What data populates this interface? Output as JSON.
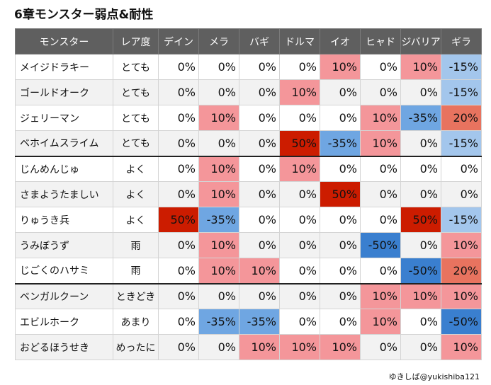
{
  "title": "6章モンスター弱点&耐性",
  "credit": "ゆきしば@yukishiba121",
  "columns": [
    "モンスター",
    "レア度",
    "デイン",
    "メラ",
    "バギ",
    "ドルマ",
    "イオ",
    "ヒャド",
    "ジバリア",
    "ギラ"
  ],
  "group_starts": [
    0,
    4,
    9
  ],
  "colors": {
    "50%": "#cc1c00",
    "20%": "#e8735f",
    "10%": "#f4969a",
    "-15%": "#a3c6ec",
    "-35%": "#6fa6e2",
    "-50%": "#3a7fcf",
    "0%": "#ffffff"
  },
  "rows": [
    {
      "name": "メイジドラキー",
      "rarity": "とても",
      "values": [
        "0%",
        "0%",
        "0%",
        "0%",
        "10%",
        "0%",
        "10%",
        "-15%"
      ]
    },
    {
      "name": "ゴールドオーク",
      "rarity": "とても",
      "values": [
        "0%",
        "0%",
        "0%",
        "10%",
        "0%",
        "0%",
        "0%",
        "-15%"
      ]
    },
    {
      "name": "ジェリーマン",
      "rarity": "とても",
      "values": [
        "0%",
        "10%",
        "0%",
        "0%",
        "0%",
        "10%",
        "-35%",
        "20%"
      ]
    },
    {
      "name": "ベホイムスライム",
      "rarity": "とても",
      "values": [
        "0%",
        "0%",
        "0%",
        "50%",
        "-35%",
        "10%",
        "0%",
        "-15%"
      ]
    },
    {
      "name": "じんめんじゅ",
      "rarity": "よく",
      "values": [
        "0%",
        "10%",
        "0%",
        "10%",
        "0%",
        "0%",
        "0%",
        "0%"
      ]
    },
    {
      "name": "さまようたましい",
      "rarity": "よく",
      "values": [
        "0%",
        "10%",
        "0%",
        "0%",
        "50%",
        "0%",
        "0%",
        "0%"
      ]
    },
    {
      "name": "りゅうき兵",
      "rarity": "よく",
      "values": [
        "50%",
        "-35%",
        "0%",
        "0%",
        "0%",
        "0%",
        "50%",
        "-15%"
      ]
    },
    {
      "name": "うみぼうず",
      "rarity": "雨",
      "values": [
        "0%",
        "10%",
        "0%",
        "0%",
        "0%",
        "-50%",
        "0%",
        "10%"
      ]
    },
    {
      "name": "じごくのハサミ",
      "rarity": "雨",
      "values": [
        "0%",
        "10%",
        "10%",
        "0%",
        "0%",
        "0%",
        "-50%",
        "20%"
      ]
    },
    {
      "name": "ベンガルクーン",
      "rarity": "ときどき",
      "values": [
        "0%",
        "0%",
        "0%",
        "0%",
        "0%",
        "10%",
        "10%",
        "10%"
      ]
    },
    {
      "name": "エビルホーク",
      "rarity": "あまり",
      "values": [
        "0%",
        "-35%",
        "-35%",
        "0%",
        "0%",
        "10%",
        "0%",
        "-50%"
      ]
    },
    {
      "name": "おどるほうせき",
      "rarity": "めったに",
      "values": [
        "0%",
        "0%",
        "10%",
        "10%",
        "10%",
        "0%",
        "0%",
        "10%"
      ]
    }
  ]
}
